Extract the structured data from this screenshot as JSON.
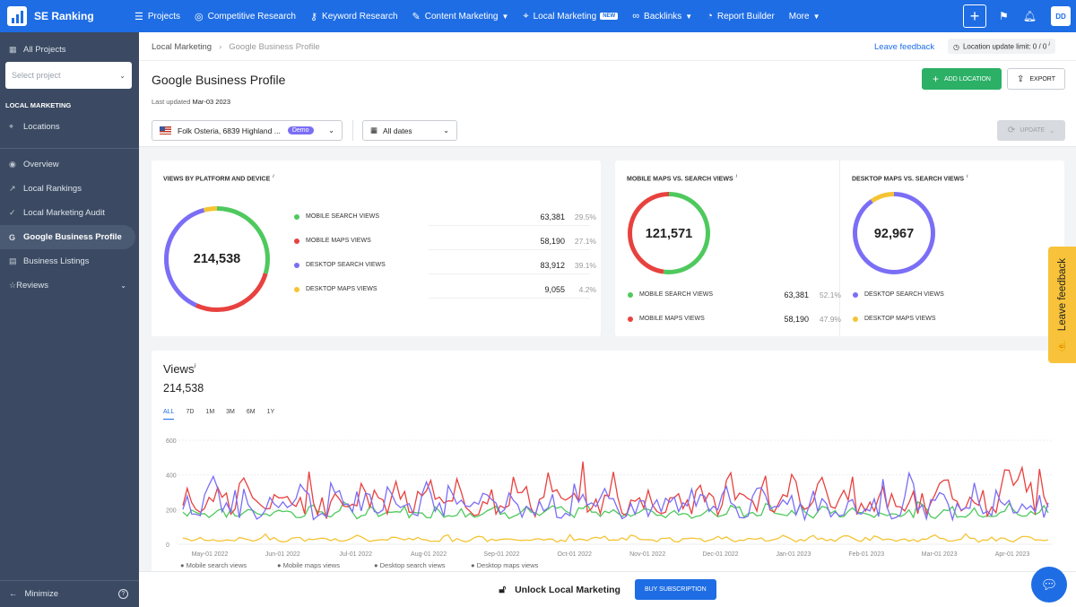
{
  "app": {
    "name": "SE Ranking"
  },
  "topnav": {
    "items": [
      {
        "label": "Projects",
        "icon": "layers-icon"
      },
      {
        "label": "Competitive Research",
        "icon": "target-icon"
      },
      {
        "label": "Keyword Research",
        "icon": "key-icon"
      },
      {
        "label": "Content Marketing",
        "icon": "edit-icon",
        "dropdown": true
      },
      {
        "label": "Local Marketing",
        "icon": "map-pin-icon",
        "badge": "NEW"
      },
      {
        "label": "Backlinks",
        "icon": "link-icon",
        "dropdown": true
      },
      {
        "label": "Report Builder",
        "icon": "pie-icon"
      },
      {
        "label": "More",
        "dropdown": true
      }
    ],
    "avatar": "DD"
  },
  "sidebar": {
    "all_projects": "All Projects",
    "select_placeholder": "Select project",
    "section": "LOCAL MARKETING",
    "locations": "Locations",
    "items": [
      {
        "label": "Overview"
      },
      {
        "label": "Local Rankings"
      },
      {
        "label": "Local Marketing Audit"
      },
      {
        "label": "Google Business Profile",
        "active": true
      },
      {
        "label": "Business Listings"
      },
      {
        "label": "Reviews"
      }
    ],
    "minimize": "Minimize"
  },
  "header": {
    "breadcrumb": [
      "Local Marketing",
      "Google Business Profile"
    ],
    "leave_feedback": "Leave feedback",
    "location_limit": "Location update limit: 0 / 0",
    "title": "Google Business Profile",
    "last_updated_label": "Last updated",
    "last_updated_value": "Mar-03 2023",
    "add_location": "ADD LOCATION",
    "export": "EXPORT",
    "location_filter": "Folk Osteria, 6839 Highland ...",
    "demo_badge": "Demo",
    "date_filter": "All dates",
    "update": "UPDATE"
  },
  "colors": {
    "mobile_search": "#4fc95e",
    "mobile_maps": "#e8423f",
    "desktop_search": "#7b6ef6",
    "desktop_maps": "#f4c434"
  },
  "views_by_platform": {
    "title": "VIEWS BY PLATFORM AND DEVICE",
    "total": "214,538",
    "rows": [
      {
        "label": "MOBILE SEARCH VIEWS",
        "value": "63,381",
        "pct": "29.5%"
      },
      {
        "label": "MOBILE MAPS VIEWS",
        "value": "58,190",
        "pct": "27.1%"
      },
      {
        "label": "DESKTOP SEARCH VIEWS",
        "value": "83,912",
        "pct": "39.1%"
      },
      {
        "label": "DESKTOP MAPS VIEWS",
        "value": "9,055",
        "pct": "4.2%"
      }
    ]
  },
  "mobile_maps_vs_search": {
    "title": "MOBILE MAPS VS. SEARCH VIEWS",
    "total": "121,571",
    "rows": [
      {
        "label": "MOBILE SEARCH VIEWS",
        "value": "63,381",
        "pct": "52.1%"
      },
      {
        "label": "MOBILE MAPS VIEWS",
        "value": "58,190",
        "pct": "47.9%"
      }
    ]
  },
  "desktop_maps_vs_search": {
    "title": "DESKTOP MAPS VS. SEARCH VIEWS",
    "total": "92,967",
    "rows": [
      {
        "label": "DESKTOP SEARCH VIEWS",
        "value": "83,912",
        "pct": "90.3%"
      },
      {
        "label": "DESKTOP MAPS VIEWS",
        "value": "9,055",
        "pct": "9.7%"
      }
    ]
  },
  "views": {
    "title": "Views",
    "total": "214,538",
    "ranges": [
      "ALL",
      "7D",
      "1M",
      "3M",
      "6M",
      "1Y"
    ],
    "active_range": "ALL"
  },
  "chart_data": {
    "type": "line",
    "ylim": [
      0,
      600
    ],
    "yticks": [
      "600",
      "400",
      "200",
      "0"
    ],
    "xticks": [
      "May-01 2022",
      "Jun-01 2022",
      "Jul-01 2022",
      "Aug-01 2022",
      "Sep-01 2022",
      "Oct-01 2022",
      "Nov-01 2022",
      "Dec-01 2022",
      "Jan-01 2023",
      "Feb-01 2023",
      "Mar-01 2023",
      "Apr-01 2023"
    ],
    "x_range": [
      "Apr-17 2022",
      "Apr-19 2023"
    ],
    "series": [
      {
        "name": "Mobile search views",
        "color": "#4fc95e",
        "approx_range": [
          120,
          250
        ]
      },
      {
        "name": "Mobile maps views",
        "color": "#e8423f",
        "approx_range": [
          60,
          480
        ]
      },
      {
        "name": "Desktop search views",
        "color": "#7b6ef6",
        "approx_range": [
          70,
          410
        ]
      },
      {
        "name": "Desktop maps views",
        "color": "#f4c434",
        "approx_range": [
          0,
          60
        ]
      }
    ]
  },
  "bottom_bar": {
    "unlock_text": "Unlock Local Marketing",
    "button": "BUY SUBSCRIPTION"
  },
  "feedback_tab": "Leave feedback"
}
